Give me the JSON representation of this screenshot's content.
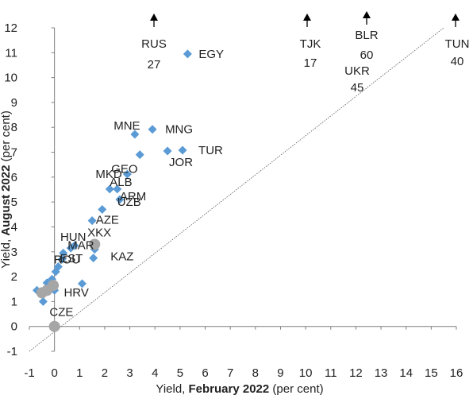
{
  "chart_data": {
    "type": "scatter",
    "title": "",
    "xlabel": {
      "prefix": "Yield, ",
      "bold": "February 2022",
      "suffix": " (per cent)"
    },
    "ylabel": {
      "prefix": "Yield, ",
      "bold": "August 2022",
      "suffix": " (per cent)"
    },
    "xlim": [
      -1,
      16
    ],
    "ylim": [
      -1,
      12
    ],
    "x_ticks": [
      -1,
      0,
      1,
      2,
      3,
      4,
      5,
      6,
      7,
      8,
      9,
      10,
      11,
      12,
      13,
      14,
      15,
      16
    ],
    "y_ticks": [
      -1,
      0,
      1,
      2,
      3,
      4,
      5,
      6,
      7,
      8,
      9,
      10,
      11,
      12
    ],
    "x_tick_labels": [
      "-1",
      "0",
      "1",
      "2",
      "3",
      "4",
      "5",
      "6",
      "7",
      "8",
      "9",
      "10",
      "11",
      "12",
      "13",
      "14",
      "15",
      "16"
    ],
    "y_tick_labels": [
      "-1",
      "0",
      "1",
      "2",
      "3",
      "4",
      "5",
      "6",
      "7",
      "8",
      "9",
      "10",
      "11",
      "12"
    ],
    "grid": false,
    "legend": "none",
    "reference_line": {
      "type": "45-degree",
      "from": [
        -1,
        -1
      ],
      "to": [
        15.5,
        12
      ]
    },
    "colors": {
      "diamond": "#5b9bd5",
      "circle": "#a6a6a6",
      "arrow": "#000000",
      "diagonal": "#595959"
    },
    "series": [
      {
        "marker": "diamond",
        "points": [
          {
            "x": 5.3,
            "y": 10.95,
            "label": "EGY"
          },
          {
            "x": 3.2,
            "y": 7.72,
            "label": "MNE"
          },
          {
            "x": 3.9,
            "y": 7.92,
            "label": "MNG"
          },
          {
            "x": 5.1,
            "y": 7.08,
            "label": "TUR"
          },
          {
            "x": 4.5,
            "y": 7.05,
            "label": "JOR"
          },
          {
            "x": 3.4,
            "y": 6.9,
            "label": "GEO"
          },
          {
            "x": 2.9,
            "y": 6.12,
            "label": "MKD"
          },
          {
            "x": 2.5,
            "y": 5.52,
            "label": "UZB"
          },
          {
            "x": 2.2,
            "y": 5.52,
            "label": "ALB"
          },
          {
            "x": 2.6,
            "y": 5.1,
            "label": "ARM"
          },
          {
            "x": 1.9,
            "y": 4.7,
            "label": "AZE"
          },
          {
            "x": 1.5,
            "y": 4.25,
            "label": "XKX"
          },
          {
            "x": 0.8,
            "y": 3.25,
            "label": "HUN"
          },
          {
            "x": 1.6,
            "y": 3.1,
            "label": "MAR"
          },
          {
            "x": 1.55,
            "y": 2.75,
            "label": "ROU"
          },
          {
            "x": 0.65,
            "y": 3.15,
            "label": "EST"
          },
          {
            "x": 0.35,
            "y": 2.95,
            "label": ""
          },
          {
            "x": 0.3,
            "y": 2.7,
            "label": ""
          },
          {
            "x": 0.15,
            "y": 2.4,
            "label": ""
          },
          {
            "x": 0.05,
            "y": 2.2,
            "label": ""
          },
          {
            "x": -0.1,
            "y": 1.9,
            "label": ""
          },
          {
            "x": -0.3,
            "y": 1.75,
            "label": ""
          },
          {
            "x": 1.1,
            "y": 1.72,
            "label": "HRV"
          },
          {
            "x": -0.7,
            "y": 1.45,
            "label": ""
          },
          {
            "x": 0.0,
            "y": 1.45,
            "label": ""
          },
          {
            "x": -0.45,
            "y": 1.0,
            "label": "CZE"
          }
        ]
      },
      {
        "marker": "circle",
        "points": [
          {
            "x": 1.6,
            "y": 3.3,
            "label": "KAZ"
          },
          {
            "x": -0.05,
            "y": 1.65,
            "label": ""
          },
          {
            "x": -0.3,
            "y": 1.45,
            "label": ""
          },
          {
            "x": -0.5,
            "y": 1.35,
            "label": ""
          },
          {
            "x": 0.0,
            "y": 0.0,
            "label": ""
          }
        ]
      }
    ],
    "offscale": [
      {
        "label": "RUS",
        "value": "27",
        "x": 4.0
      },
      {
        "label": "TJK",
        "value": "17",
        "x": 10.0
      },
      {
        "label": "BLR",
        "value": "60",
        "x": 12.5
      },
      {
        "label": "UKR",
        "value": "45",
        "x": 12.5
      },
      {
        "label": "TUN",
        "value": "40",
        "x": 16.0
      }
    ]
  }
}
